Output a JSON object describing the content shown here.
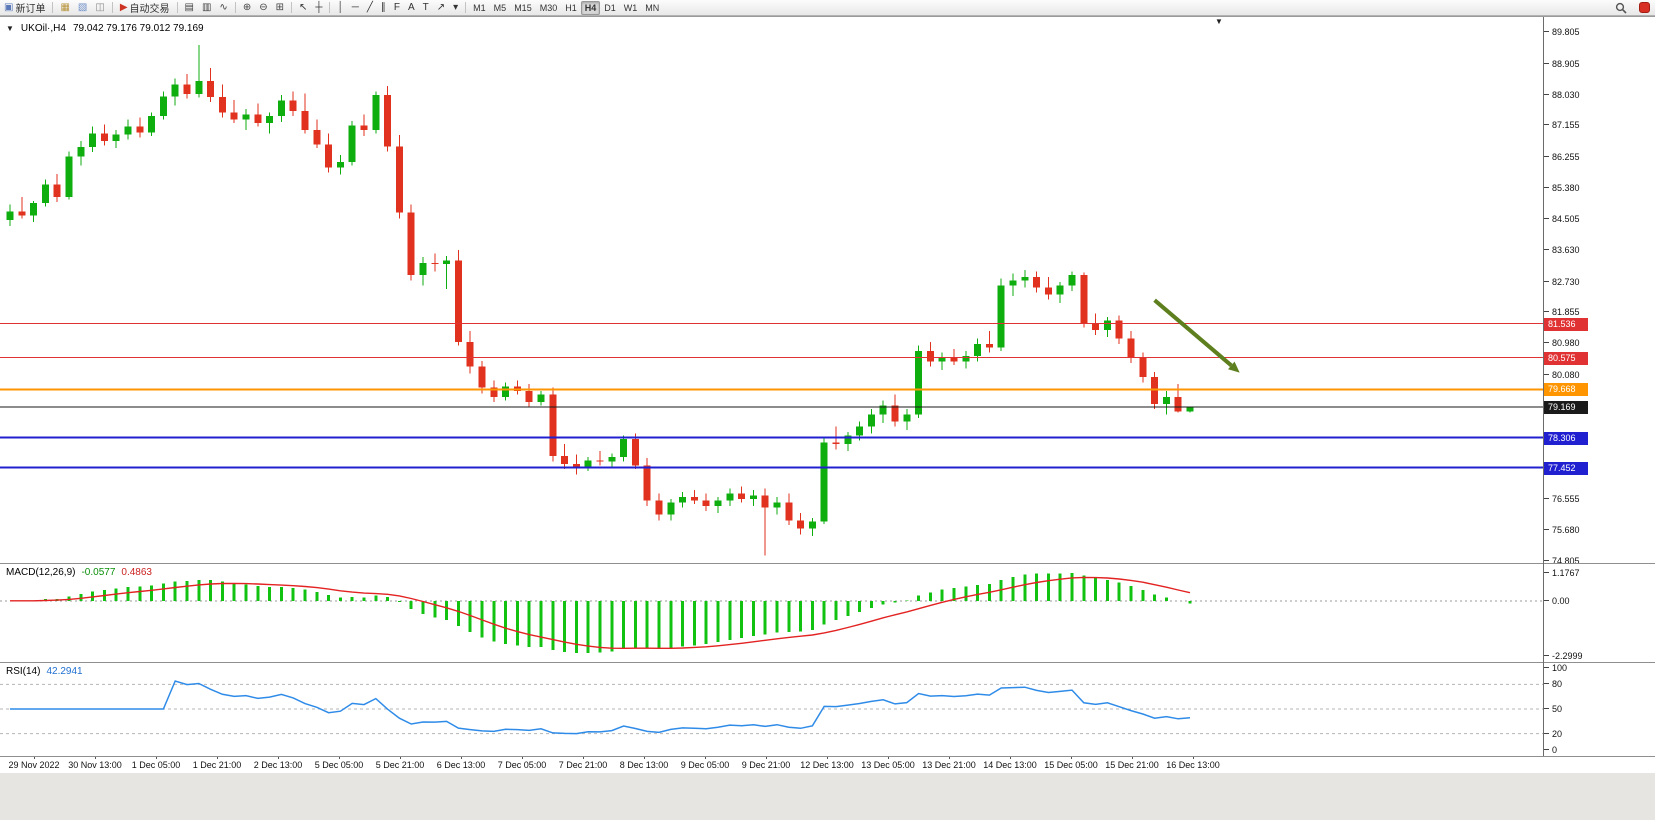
{
  "toolbar": {
    "groups": [
      {
        "items": [
          {
            "name": "new-order",
            "glyph": "▣",
            "color": "#5b79b8",
            "label": "新订单"
          }
        ]
      },
      {
        "items": [
          {
            "name": "market-watch",
            "glyph": "▦",
            "color": "#b8963f"
          },
          {
            "name": "data-window",
            "glyph": "▧",
            "color": "#6f8fc9"
          },
          {
            "name": "navigator",
            "glyph": "◫",
            "color": "#8a8a8a"
          }
        ]
      },
      {
        "items": [
          {
            "name": "autotrading",
            "glyph": "▶",
            "color": "#cc3322",
            "label": "自动交易"
          }
        ]
      },
      {
        "items": [
          {
            "name": "bar-chart",
            "glyph": "▤",
            "color": "#444444"
          },
          {
            "name": "candlestick-chart",
            "glyph": "▥",
            "color": "#444444"
          },
          {
            "name": "line-chart",
            "glyph": "∿",
            "color": "#444444"
          }
        ]
      },
      {
        "items": [
          {
            "name": "zoom-in",
            "glyph": "⊕",
            "color": "#444444"
          },
          {
            "name": "zoom-out",
            "glyph": "⊖",
            "color": "#444444"
          },
          {
            "name": "tile-windows",
            "glyph": "⊞",
            "color": "#444444"
          }
        ]
      },
      {
        "items": [
          {
            "name": "cursor",
            "glyph": "↖",
            "color": "#333333"
          },
          {
            "name": "crosshair",
            "glyph": "┼",
            "color": "#333333"
          }
        ]
      },
      {
        "items": [
          {
            "name": "vertical-line",
            "glyph": "│",
            "color": "#333333"
          },
          {
            "name": "horizontal-line",
            "glyph": "─",
            "color": "#333333"
          },
          {
            "name": "trendline",
            "glyph": "╱",
            "color": "#333333"
          },
          {
            "name": "equidistant-channel",
            "glyph": "∥",
            "color": "#333333"
          },
          {
            "name": "fibonacci",
            "glyph": "F",
            "color": "#333333"
          },
          {
            "name": "text",
            "glyph": "A",
            "color": "#333333"
          },
          {
            "name": "text-label",
            "glyph": "T",
            "color": "#333333"
          },
          {
            "name": "arrows-tool",
            "glyph": "↗",
            "color": "#333333"
          },
          {
            "name": "shapes-dropdown",
            "glyph": "▾",
            "color": "#333333"
          }
        ]
      },
      {
        "items": [
          {
            "name": "tf-m1",
            "label": "M1"
          },
          {
            "name": "tf-m5",
            "label": "M5"
          },
          {
            "name": "tf-m15",
            "label": "M15"
          },
          {
            "name": "tf-m30",
            "label": "M30"
          },
          {
            "name": "tf-h1",
            "label": "H1"
          },
          {
            "name": "tf-h4",
            "label": "H4",
            "active": true
          },
          {
            "name": "tf-d1",
            "label": "D1"
          },
          {
            "name": "tf-w1",
            "label": "W1"
          },
          {
            "name": "tf-mn",
            "label": "MN"
          }
        ]
      }
    ]
  },
  "chart": {
    "symbol_period": "UKOil·,H4",
    "ohlc": "79.042 79.176 79.012 79.169"
  },
  "colors": {
    "candle_up": "#0fae0f",
    "candle_down": "#e0321e",
    "macd_hist": "#11c211",
    "macd_signal": "#e32222",
    "rsi_line": "#2f8be8",
    "level_dash": "#b5b5b5",
    "zero_dash": "#999999"
  },
  "chart_data": {
    "type": "candlestick",
    "title": "UKOil H4 with MACD and RSI",
    "price_axis": {
      "min": 74.805,
      "max": 89.805,
      "ticks": [
        "89.805",
        "88.905",
        "88.030",
        "87.155",
        "86.255",
        "85.380",
        "84.505",
        "83.630",
        "82.730",
        "81.855",
        "80.980",
        "80.080",
        "76.555",
        "75.680",
        "74.805"
      ]
    },
    "hlines": [
      {
        "name": "resistance-line-1",
        "value": 81.536,
        "label": "81.536",
        "color": "#e03232",
        "width": 1
      },
      {
        "name": "resistance-line-2",
        "value": 80.575,
        "label": "80.575",
        "color": "#e03232",
        "width": 1
      },
      {
        "name": "pivot-line",
        "value": 79.668,
        "label": "79.668",
        "color": "#ff9500",
        "width": 2
      },
      {
        "name": "current-price-line",
        "value": 79.169,
        "label": "79.169",
        "color": "#1a1a1a",
        "width": 1
      },
      {
        "name": "support-line-1",
        "value": 78.306,
        "label": "78.306",
        "color": "#2020d0",
        "width": 2
      },
      {
        "name": "support-line-2",
        "value": 77.452,
        "label": "77.452",
        "color": "#2020d0",
        "width": 2
      }
    ],
    "arrow": {
      "from": {
        "bar": 97,
        "price": 82.2
      },
      "to": {
        "bar": 103.5,
        "price": 80.35
      },
      "color": "#5d7f1d"
    },
    "candles": [
      [
        84.48,
        84.92,
        84.3,
        84.72
      ],
      [
        84.72,
        85.12,
        84.52,
        84.6
      ],
      [
        84.6,
        85.02,
        84.42,
        84.95
      ],
      [
        84.95,
        85.62,
        84.85,
        85.48
      ],
      [
        85.48,
        85.78,
        84.98,
        85.12
      ],
      [
        85.12,
        86.42,
        85.05,
        86.28
      ],
      [
        86.28,
        86.72,
        86.02,
        86.55
      ],
      [
        86.55,
        87.12,
        86.4,
        86.92
      ],
      [
        86.92,
        87.18,
        86.58,
        86.72
      ],
      [
        86.72,
        87.02,
        86.52,
        86.9
      ],
      [
        86.9,
        87.32,
        86.76,
        87.12
      ],
      [
        87.12,
        87.38,
        86.82,
        86.96
      ],
      [
        86.96,
        87.52,
        86.86,
        87.42
      ],
      [
        87.42,
        88.12,
        87.32,
        87.98
      ],
      [
        87.98,
        88.48,
        87.72,
        88.32
      ],
      [
        88.32,
        88.62,
        87.92,
        88.05
      ],
      [
        88.05,
        89.43,
        87.95,
        88.42
      ],
      [
        88.42,
        88.78,
        87.82,
        87.96
      ],
      [
        87.96,
        88.32,
        87.38,
        87.52
      ],
      [
        87.52,
        87.88,
        87.22,
        87.32
      ],
      [
        87.32,
        87.62,
        87.02,
        87.46
      ],
      [
        87.46,
        87.78,
        87.12,
        87.22
      ],
      [
        87.22,
        87.52,
        86.92,
        87.42
      ],
      [
        87.42,
        88.02,
        87.26,
        87.86
      ],
      [
        87.86,
        88.12,
        87.42,
        87.56
      ],
      [
        87.56,
        88.06,
        86.92,
        87.02
      ],
      [
        87.02,
        87.32,
        86.52,
        86.62
      ],
      [
        86.62,
        86.92,
        85.82,
        85.96
      ],
      [
        85.96,
        86.32,
        85.76,
        86.12
      ],
      [
        86.12,
        87.28,
        86.02,
        87.16
      ],
      [
        87.16,
        87.46,
        86.86,
        87.02
      ],
      [
        87.02,
        88.12,
        86.92,
        88.02
      ],
      [
        88.02,
        88.28,
        86.42,
        86.56
      ],
      [
        86.56,
        86.88,
        84.52,
        84.68
      ],
      [
        84.68,
        84.92,
        82.76,
        82.92
      ],
      [
        82.92,
        83.42,
        82.62,
        83.26
      ],
      [
        83.26,
        83.52,
        83.02,
        83.22
      ],
      [
        83.22,
        83.46,
        82.52,
        83.32
      ],
      [
        83.32,
        83.62,
        80.92,
        81.02
      ],
      [
        81.02,
        81.32,
        80.12,
        80.32
      ],
      [
        80.32,
        80.48,
        79.56,
        79.72
      ],
      [
        79.72,
        79.92,
        79.32,
        79.46
      ],
      [
        79.46,
        79.86,
        79.36,
        79.76
      ],
      [
        79.76,
        79.92,
        79.52,
        79.62
      ],
      [
        79.62,
        79.82,
        79.16,
        79.32
      ],
      [
        79.32,
        79.62,
        79.22,
        79.52
      ],
      [
        79.52,
        79.72,
        77.62,
        77.78
      ],
      [
        77.78,
        78.12,
        77.42,
        77.56
      ],
      [
        77.56,
        77.82,
        77.26,
        77.46
      ],
      [
        77.46,
        77.76,
        77.36,
        77.66
      ],
      [
        77.66,
        77.92,
        77.52,
        77.62
      ],
      [
        77.62,
        77.86,
        77.46,
        77.76
      ],
      [
        77.76,
        78.36,
        77.62,
        78.26
      ],
      [
        78.26,
        78.42,
        77.42,
        77.52
      ],
      [
        77.52,
        77.72,
        76.36,
        76.52
      ],
      [
        76.52,
        76.72,
        75.96,
        76.12
      ],
      [
        76.12,
        76.56,
        75.96,
        76.46
      ],
      [
        76.46,
        76.76,
        76.32,
        76.62
      ],
      [
        76.62,
        76.82,
        76.42,
        76.52
      ],
      [
        76.52,
        76.72,
        76.22,
        76.36
      ],
      [
        76.36,
        76.62,
        76.16,
        76.52
      ],
      [
        76.52,
        76.86,
        76.36,
        76.72
      ],
      [
        76.72,
        76.92,
        76.46,
        76.56
      ],
      [
        76.56,
        76.82,
        76.36,
        76.66
      ],
      [
        76.66,
        76.86,
        74.96,
        76.32
      ],
      [
        76.32,
        76.62,
        76.12,
        76.46
      ],
      [
        76.46,
        76.72,
        75.82,
        75.96
      ],
      [
        75.96,
        76.16,
        75.56,
        75.72
      ],
      [
        75.72,
        76.02,
        75.52,
        75.92
      ],
      [
        75.92,
        78.32,
        75.86,
        78.16
      ],
      [
        78.16,
        78.62,
        77.96,
        78.12
      ],
      [
        78.12,
        78.46,
        77.92,
        78.36
      ],
      [
        78.36,
        78.76,
        78.22,
        78.62
      ],
      [
        78.62,
        79.12,
        78.42,
        78.96
      ],
      [
        78.96,
        79.36,
        78.72,
        79.22
      ],
      [
        79.22,
        79.52,
        78.62,
        78.76
      ],
      [
        78.76,
        79.12,
        78.52,
        78.96
      ],
      [
        78.96,
        80.92,
        78.86,
        80.76
      ],
      [
        80.76,
        81.02,
        80.32,
        80.46
      ],
      [
        80.46,
        80.72,
        80.22,
        80.56
      ],
      [
        80.56,
        80.82,
        80.36,
        80.46
      ],
      [
        80.46,
        80.76,
        80.26,
        80.62
      ],
      [
        80.62,
        81.12,
        80.46,
        80.96
      ],
      [
        80.96,
        81.32,
        80.72,
        80.86
      ],
      [
        80.86,
        82.82,
        80.76,
        82.62
      ],
      [
        82.62,
        82.96,
        82.32,
        82.76
      ],
      [
        82.76,
        83.06,
        82.56,
        82.86
      ],
      [
        82.86,
        83.02,
        82.42,
        82.56
      ],
      [
        82.56,
        82.86,
        82.22,
        82.36
      ],
      [
        82.36,
        82.72,
        82.12,
        82.62
      ],
      [
        82.62,
        83.02,
        82.46,
        82.92
      ],
      [
        82.92,
        82.98,
        81.42,
        81.56
      ],
      [
        81.56,
        81.82,
        81.22,
        81.36
      ],
      [
        81.36,
        81.72,
        81.16,
        81.62
      ],
      [
        81.62,
        81.76,
        80.96,
        81.12
      ],
      [
        81.12,
        81.32,
        80.42,
        80.56
      ],
      [
        80.56,
        80.72,
        79.86,
        80.02
      ],
      [
        80.02,
        80.16,
        79.12,
        79.26
      ],
      [
        79.26,
        79.62,
        78.96,
        79.46
      ],
      [
        79.46,
        79.82,
        79.02,
        79.04
      ],
      [
        79.042,
        79.176,
        79.012,
        79.169
      ]
    ],
    "macd": {
      "label": "MACD(12,26,9)",
      "values": [
        "-0.0577",
        "0.4863"
      ],
      "params": [
        12,
        26,
        9
      ],
      "axis": [
        "1.1767",
        "0.00",
        "-2.2999"
      ],
      "axis_values": [
        1.1767,
        0,
        -2.2999
      ]
    },
    "rsi": {
      "label": "RSI(14)",
      "value": "42.2941",
      "period": 14,
      "axis": [
        "100",
        "80",
        "50",
        "20",
        "0"
      ],
      "axis_values": [
        100,
        80,
        50,
        20,
        0
      ],
      "levels": [
        80,
        50,
        20
      ]
    },
    "time_labels": [
      "29 Nov 2022",
      "30 Nov 13:00",
      "1 Dec 05:00",
      "1 Dec 21:00",
      "2 Dec 13:00",
      "5 Dec 05:00",
      "5 Dec 21:00",
      "6 Dec 13:00",
      "7 Dec 05:00",
      "7 Dec 21:00",
      "8 Dec 13:00",
      "9 Dec 05:00",
      "9 Dec 21:00",
      "12 Dec 13:00",
      "13 Dec 05:00",
      "13 Dec 21:00",
      "14 Dec 13:00",
      "15 Dec 05:00",
      "15 Dec 21:00",
      "16 Dec 13:00"
    ]
  }
}
